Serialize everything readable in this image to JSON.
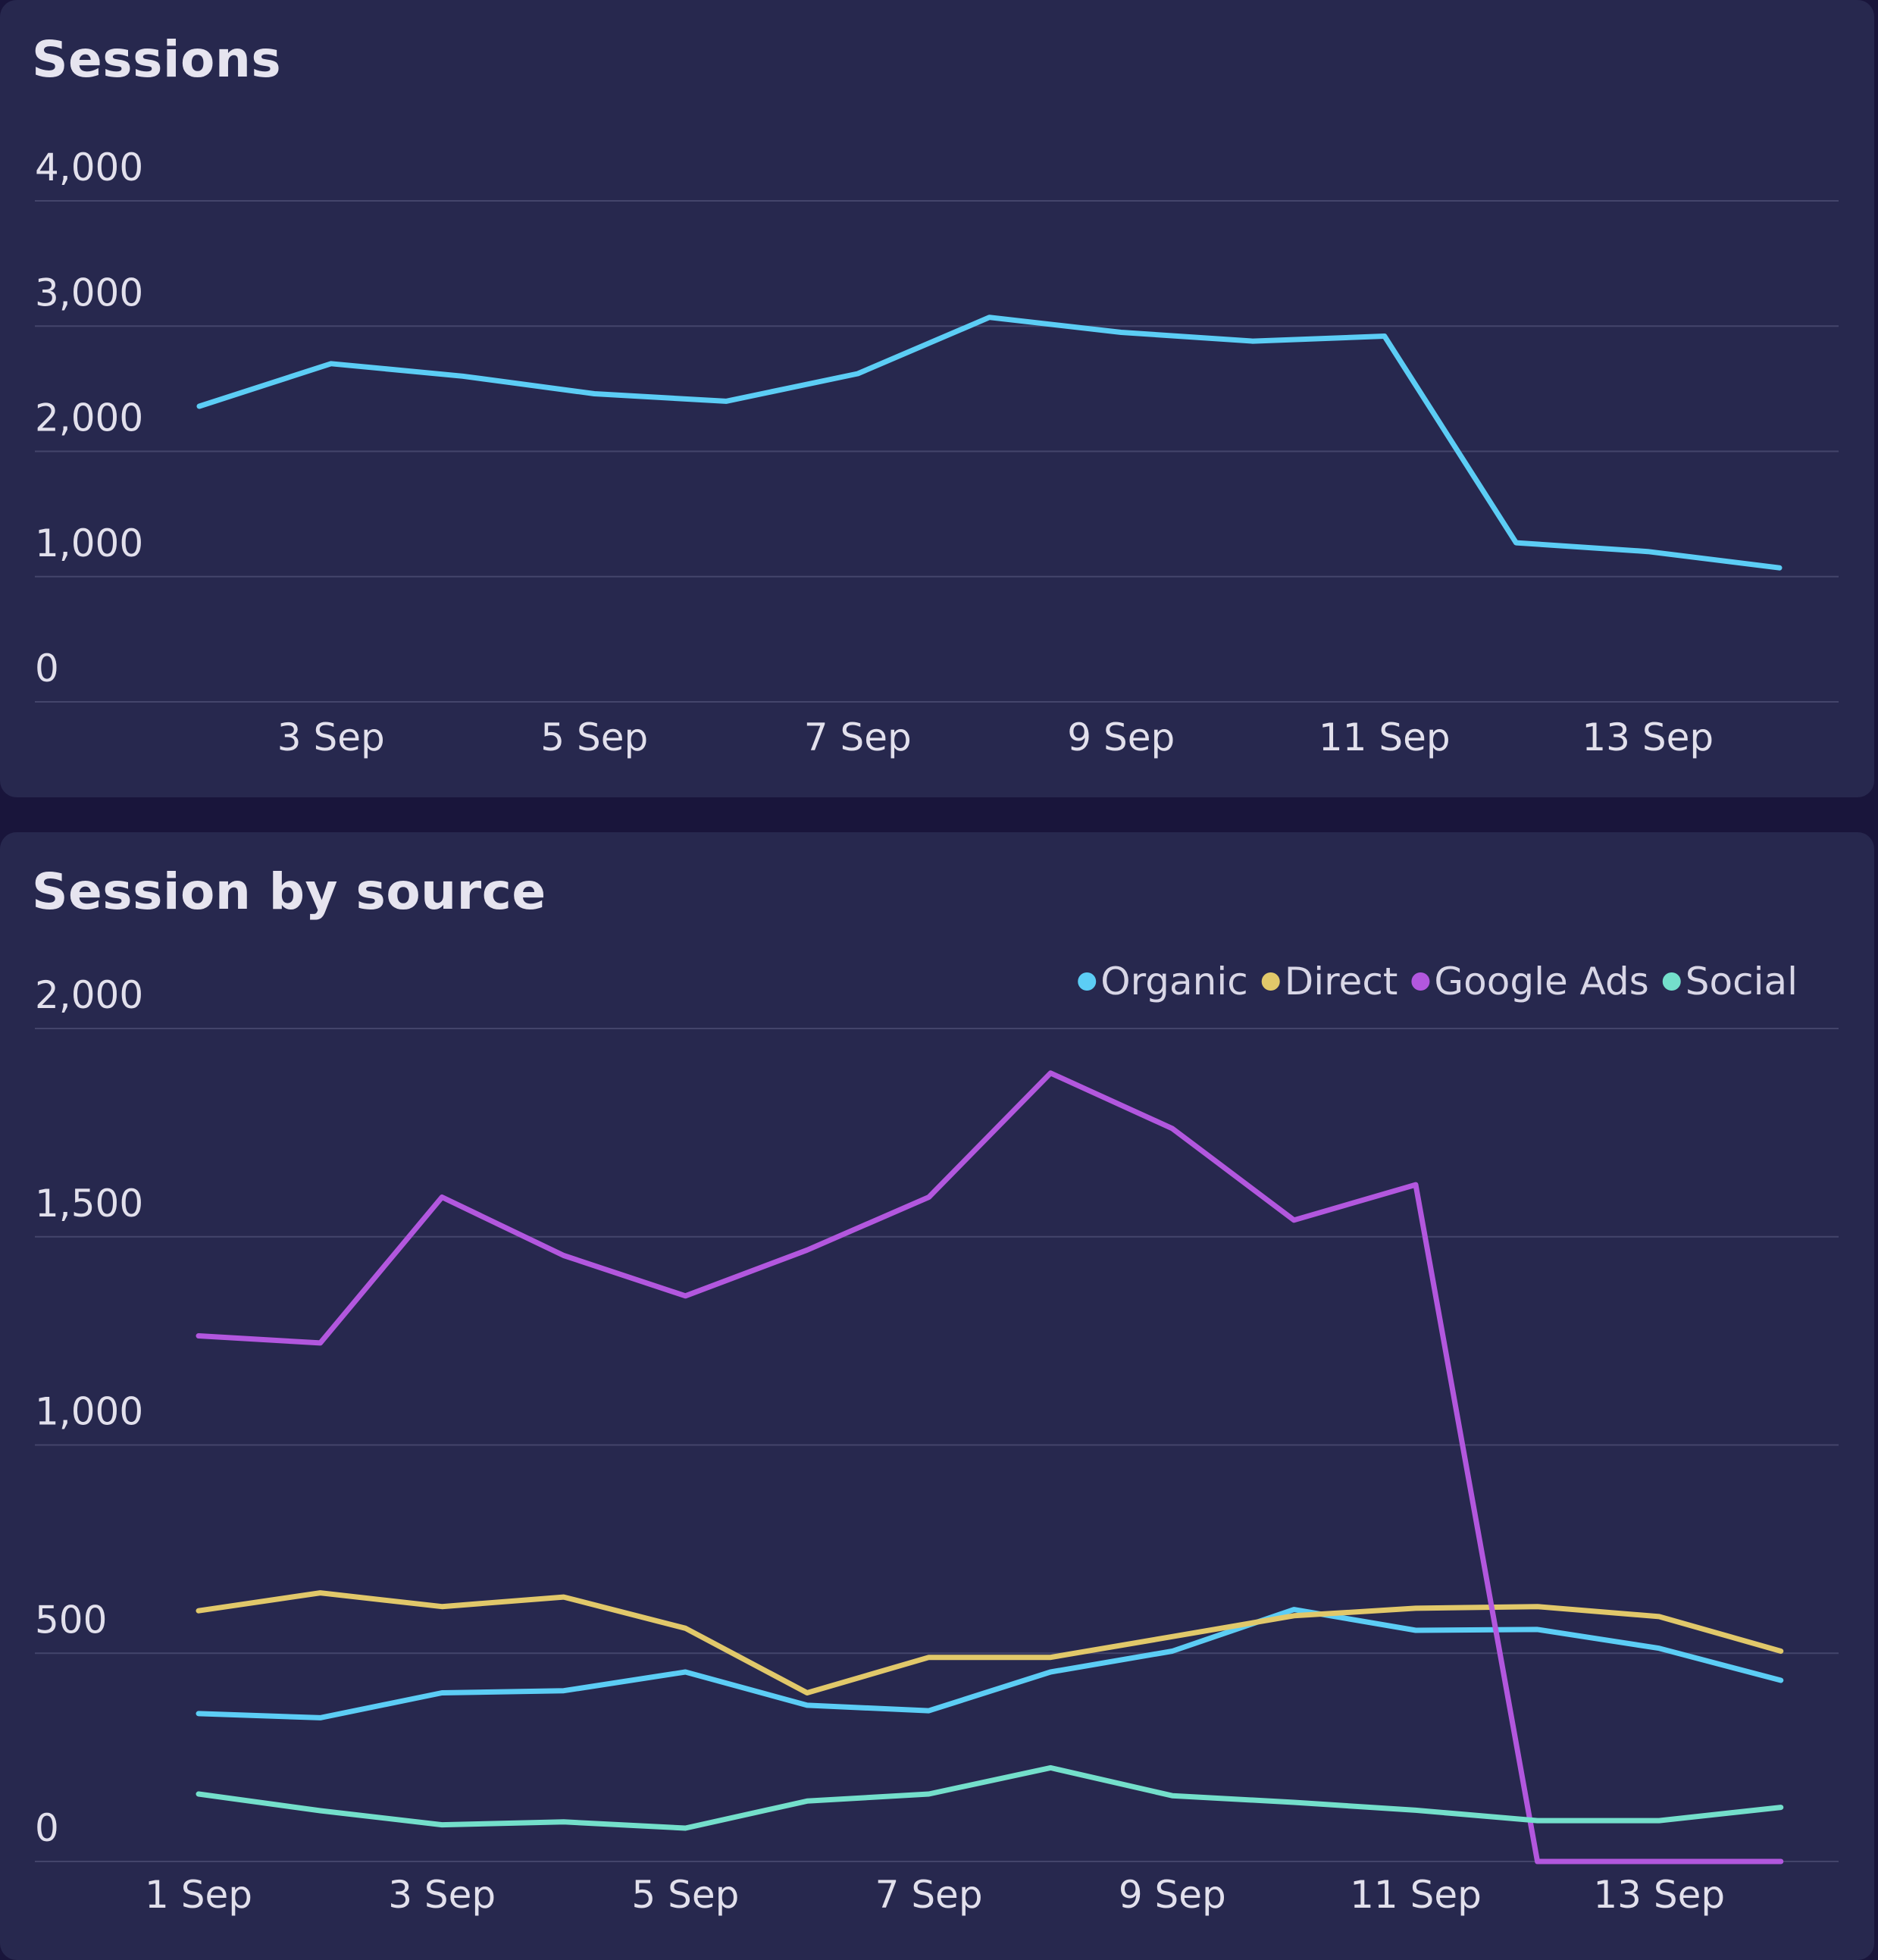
{
  "chart_data": [
    {
      "type": "line",
      "title": "Sessions",
      "x": [
        "2 Sep",
        "3 Sep",
        "4 Sep",
        "5 Sep",
        "6 Sep",
        "7 Sep",
        "8 Sep",
        "9 Sep",
        "10 Sep",
        "11 Sep",
        "12 Sep",
        "13 Sep",
        "14 Sep"
      ],
      "x_tick_labels": [
        "3 Sep",
        "5 Sep",
        "7 Sep",
        "9 Sep",
        "11 Sep",
        "13 Sep"
      ],
      "y_tick_labels": [
        "0",
        "1,000",
        "2,000",
        "3,000",
        "4,000"
      ],
      "ylim": [
        0,
        4000
      ],
      "grid": true,
      "series": [
        {
          "color": "#5ccdf5",
          "values": [
            2360,
            2700,
            2600,
            2460,
            2400,
            2620,
            3070,
            2950,
            2880,
            2920,
            1270,
            1200,
            1070
          ]
        }
      ]
    },
    {
      "type": "line",
      "title": "Session by source",
      "x": [
        "1 Sep",
        "2 Sep",
        "3 Sep",
        "4 Sep",
        "5 Sep",
        "6 Sep",
        "7 Sep",
        "8 Sep",
        "9 Sep",
        "10 Sep",
        "11 Sep",
        "12 Sep",
        "13 Sep",
        "14 Sep"
      ],
      "x_tick_labels": [
        "1 Sep",
        "3 Sep",
        "5 Sep",
        "7 Sep",
        "9 Sep",
        "11 Sep",
        "13 Sep"
      ],
      "y_tick_labels": [
        "0",
        "500",
        "1,000",
        "1,500",
        "2,000"
      ],
      "ylim": [
        0,
        2000
      ],
      "grid": true,
      "legend_position": "top-right",
      "series": [
        {
          "name": "Organic",
          "color": "#5ccdf5",
          "values": [
            355,
            345,
            405,
            410,
            455,
            375,
            362,
            455,
            505,
            605,
            555,
            557,
            512,
            435
          ]
        },
        {
          "name": "Direct",
          "color": "#e1c86a",
          "values": [
            602,
            645,
            612,
            635,
            560,
            405,
            490,
            490,
            540,
            590,
            608,
            612,
            588,
            505
          ]
        },
        {
          "name": "Google Ads",
          "color": "#b257de",
          "values": [
            1262,
            1245,
            1595,
            1455,
            1358,
            1468,
            1595,
            1893,
            1760,
            1540,
            1625,
            0,
            0,
            0
          ]
        },
        {
          "name": "Social",
          "color": "#74dfcb",
          "values": [
            162,
            122,
            88,
            95,
            80,
            145,
            162,
            225,
            158,
            142,
            123,
            98,
            98,
            130
          ]
        }
      ]
    }
  ]
}
